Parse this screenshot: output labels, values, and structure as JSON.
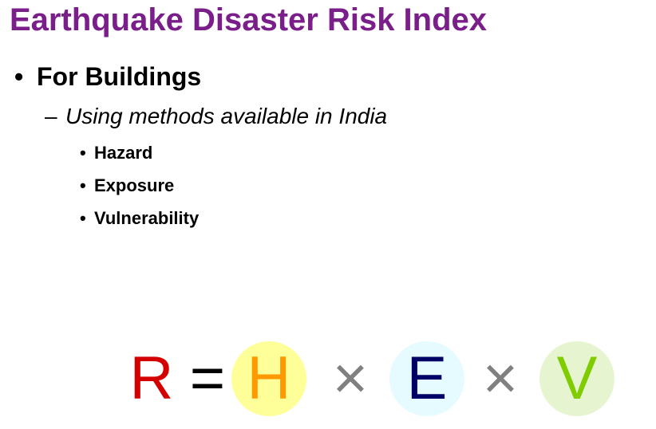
{
  "title": "Earthquake Disaster Risk Index",
  "bullet_l1": {
    "marker": "•",
    "text": "For Buildings"
  },
  "bullet_l2": {
    "marker": "–",
    "text": "Using methods available in India"
  },
  "bullet_l3": [
    {
      "marker": "•",
      "text": "Hazard"
    },
    {
      "marker": "•",
      "text": "Exposure"
    },
    {
      "marker": "•",
      "text": "Vulnerability"
    }
  ],
  "formula": {
    "risk": "R",
    "equals": "=",
    "hazard": "H",
    "times1": "×",
    "exposure": "E",
    "times2": "×",
    "vulnerability": "V"
  },
  "colors": {
    "title": "#7a1f8a",
    "risk": "#d40000",
    "hazard": "#ff9900",
    "hazard_circle": "#ffff99",
    "exposure": "#000066",
    "exposure_circle": "#e6fbff",
    "vulnerability": "#7fcc00",
    "vulnerability_circle": "#e6f5d0",
    "operator": "#808080"
  }
}
